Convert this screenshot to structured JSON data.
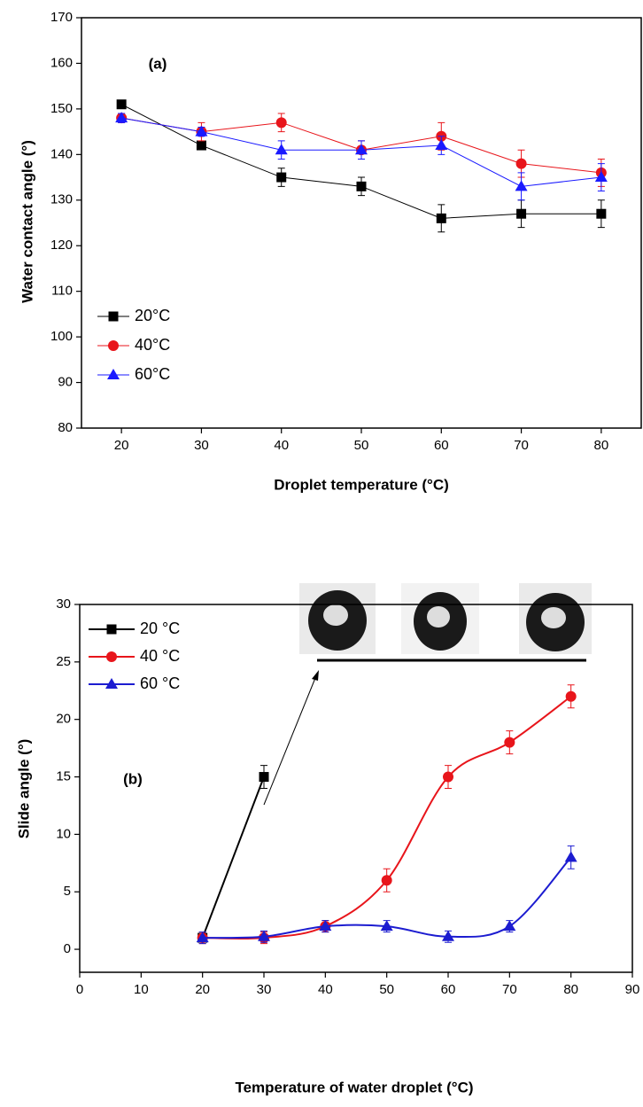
{
  "chart_data": [
    {
      "type": "line",
      "annotation": "(a)",
      "x_label": "Droplet temperature (°C)",
      "y_label": "Water contact angle (°)",
      "xlim": [
        15,
        85
      ],
      "xticks": [
        20,
        30,
        40,
        50,
        60,
        70,
        80
      ],
      "ylim": [
        80,
        170
      ],
      "yticks": [
        80,
        90,
        100,
        110,
        120,
        130,
        140,
        150,
        160,
        170
      ],
      "legend": "lower left",
      "series": [
        {
          "name": "20°C",
          "color": "#000000",
          "marker": "square",
          "smooth": false,
          "x": [
            20,
            30,
            40,
            50,
            60,
            70,
            80
          ],
          "values": [
            151,
            142,
            135,
            133,
            126,
            127,
            127
          ],
          "errors": [
            0,
            0,
            2,
            2,
            3,
            3,
            3
          ]
        },
        {
          "name": "40°C",
          "color": "#e8151b",
          "marker": "circle",
          "smooth": false,
          "x": [
            20,
            30,
            40,
            50,
            60,
            70,
            80
          ],
          "values": [
            148,
            145,
            147,
            141,
            144,
            138,
            136
          ],
          "errors": [
            1,
            2,
            2,
            2,
            3,
            3,
            3
          ]
        },
        {
          "name": "60°C",
          "color": "#1a1aff",
          "marker": "triangle",
          "smooth": false,
          "x": [
            20,
            30,
            40,
            50,
            60,
            70,
            80
          ],
          "values": [
            148,
            145,
            141,
            141,
            142,
            133,
            135
          ],
          "errors": [
            1,
            1,
            2,
            2,
            2,
            3,
            3
          ]
        }
      ]
    },
    {
      "type": "line",
      "annotation": "(b)",
      "x_label": "Temperature of water droplet (°C)",
      "y_label": "Slide angle (°)",
      "xlim": [
        0,
        90
      ],
      "xticks": [
        0,
        10,
        20,
        30,
        40,
        50,
        60,
        70,
        80,
        90
      ],
      "ylim": [
        -2,
        30
      ],
      "yticks": [
        0,
        5,
        10,
        15,
        20,
        25,
        30
      ],
      "legend": "upper left",
      "series": [
        {
          "name": "20 °C",
          "color": "#000000",
          "marker": "square",
          "smooth": false,
          "x": [
            20,
            30
          ],
          "values": [
            1,
            15
          ],
          "errors": [
            0.3,
            1
          ]
        },
        {
          "name": "40 °C",
          "color": "#e8151b",
          "marker": "circle",
          "smooth": true,
          "x": [
            20,
            30,
            40,
            50,
            60,
            70,
            80
          ],
          "values": [
            1,
            1,
            2,
            6,
            15,
            18,
            22
          ],
          "errors": [
            0.5,
            0.5,
            0.5,
            1,
            1,
            1,
            1
          ]
        },
        {
          "name": "60 °C",
          "color": "#1c1cd0",
          "marker": "triangle",
          "smooth": true,
          "x": [
            20,
            30,
            40,
            50,
            60,
            70,
            80
          ],
          "values": [
            1,
            1.1,
            2,
            2,
            1.1,
            2,
            8
          ],
          "errors": [
            0.5,
            0.5,
            0.5,
            0.5,
            0.5,
            0.5,
            1
          ]
        }
      ]
    }
  ]
}
